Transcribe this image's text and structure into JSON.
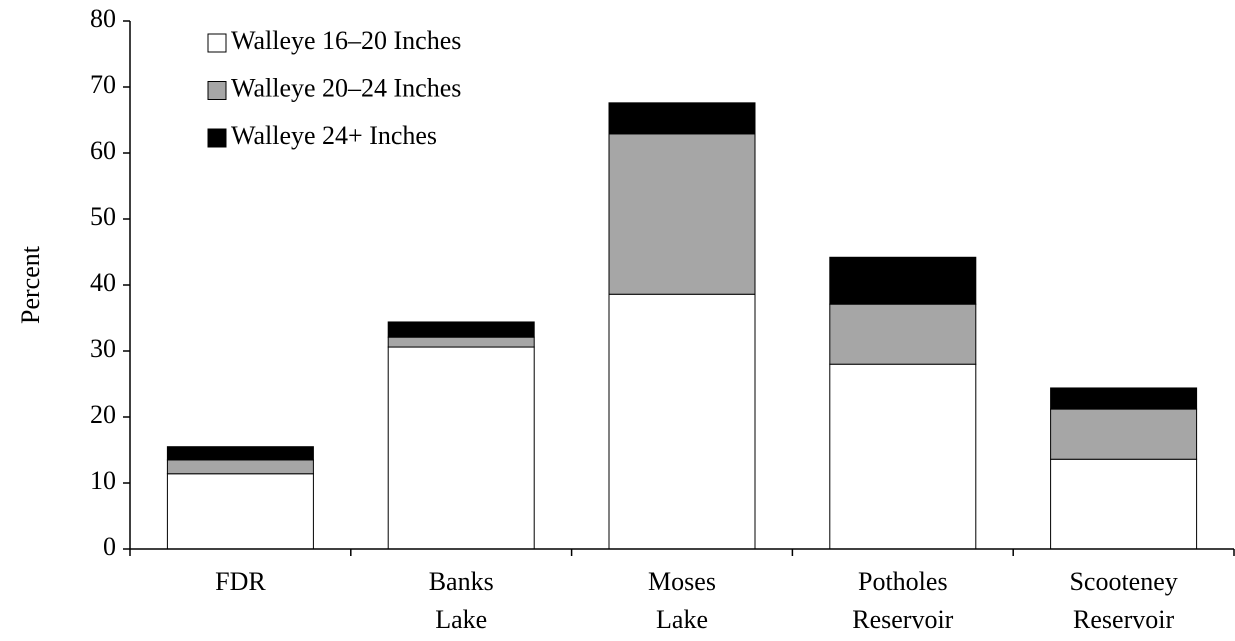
{
  "chart_data": {
    "type": "stacked_bar",
    "y_label": "Percent",
    "categories": [
      "FDR",
      "Banks Lake",
      "Moses Lake",
      "Potholes Reservoir",
      "Scooteney Reservoir"
    ],
    "series": [
      {
        "name": "Walleye 16–20 Inches",
        "color": "#ffffff",
        "values": [
          11.4,
          30.6,
          38.6,
          28.0,
          13.6
        ]
      },
      {
        "name": "Walleye 20–24 Inches",
        "color": "#a6a6a6",
        "values": [
          2.1,
          1.5,
          24.3,
          9.1,
          7.6
        ]
      },
      {
        "name": "Walleye 24+ Inches",
        "color": "#000000",
        "values": [
          2.0,
          2.3,
          4.7,
          7.1,
          3.2
        ]
      }
    ],
    "ylim": [
      0,
      80
    ],
    "yticks": [
      0,
      10,
      20,
      30,
      40,
      50,
      60,
      70,
      80
    ],
    "legend": "upper left"
  }
}
